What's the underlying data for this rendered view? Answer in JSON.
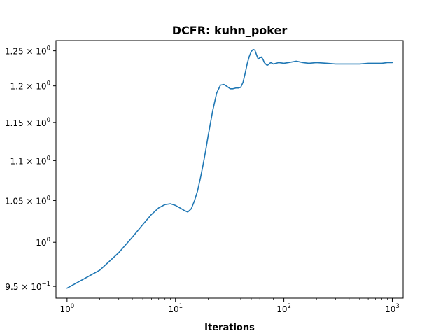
{
  "chart_data": {
    "type": "line",
    "title": "DCFR: kuhn_poker",
    "xlabel": "Iterations",
    "ylabel": "",
    "xscale": "log",
    "yscale": "log",
    "xlim": [
      0.79,
      1260
    ],
    "ylim": [
      0.937,
      1.265
    ],
    "grid": false,
    "legend": "none",
    "colors": {
      "series": "#1f77b4",
      "axes": "#000000",
      "background": "#ffffff"
    },
    "x_ticks": [
      {
        "value": 1,
        "base": "10",
        "exp": "0"
      },
      {
        "value": 10,
        "base": "10",
        "exp": "1"
      },
      {
        "value": 100,
        "base": "10",
        "exp": "2"
      },
      {
        "value": 1000,
        "base": "10",
        "exp": "3"
      }
    ],
    "y_ticks": [
      {
        "value": 0.95,
        "mant": "9.5 × 10",
        "exp": "−1"
      },
      {
        "value": 1.0,
        "mant": "10",
        "exp": "0"
      },
      {
        "value": 1.05,
        "mant": "1.05 × 10",
        "exp": "0"
      },
      {
        "value": 1.1,
        "mant": "1.1 × 10",
        "exp": "0"
      },
      {
        "value": 1.15,
        "mant": "1.15 × 10",
        "exp": "0"
      },
      {
        "value": 1.2,
        "mant": "1.2 × 10",
        "exp": "0"
      },
      {
        "value": 1.25,
        "mant": "1.25 × 10",
        "exp": "0"
      }
    ],
    "series": [
      {
        "values_x": [
          1,
          2,
          3,
          4,
          5,
          6,
          7,
          8,
          9,
          10,
          11,
          12,
          13,
          14,
          15,
          16,
          17,
          18,
          19,
          20,
          22,
          24,
          26,
          28,
          30,
          32,
          34,
          36,
          38,
          40,
          42,
          44,
          46,
          48,
          50,
          52,
          54,
          56,
          58,
          60,
          62,
          64,
          66,
          68,
          70,
          72,
          74,
          76,
          80,
          90,
          100,
          110,
          120,
          130,
          150,
          170,
          200,
          250,
          300,
          350,
          400,
          500,
          600,
          700,
          800,
          900,
          1000
        ],
        "values_y": [
          0.948,
          0.968,
          0.988,
          1.006,
          1.021,
          1.033,
          1.041,
          1.045,
          1.046,
          1.044,
          1.041,
          1.038,
          1.036,
          1.04,
          1.05,
          1.062,
          1.078,
          1.095,
          1.113,
          1.132,
          1.165,
          1.19,
          1.201,
          1.202,
          1.199,
          1.196,
          1.196,
          1.197,
          1.197,
          1.198,
          1.205,
          1.218,
          1.232,
          1.242,
          1.249,
          1.252,
          1.251,
          1.244,
          1.238,
          1.24,
          1.241,
          1.238,
          1.233,
          1.231,
          1.229,
          1.23,
          1.232,
          1.233,
          1.231,
          1.233,
          1.232,
          1.233,
          1.234,
          1.235,
          1.233,
          1.232,
          1.233,
          1.232,
          1.231,
          1.231,
          1.231,
          1.231,
          1.232,
          1.232,
          1.232,
          1.233,
          1.233
        ]
      }
    ]
  }
}
